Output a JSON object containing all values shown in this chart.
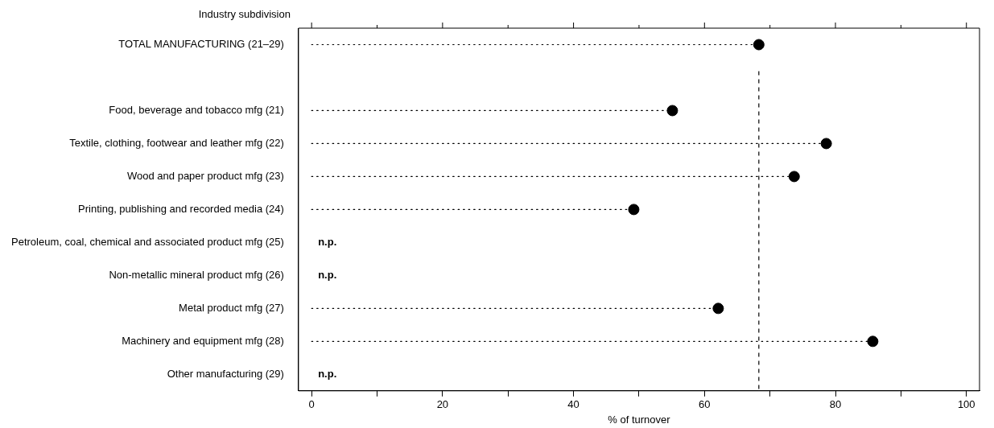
{
  "chart_data": {
    "type": "lollipop",
    "orientation": "horizontal",
    "xlabel": "% of turnover",
    "ylabel": "Industry subdivision",
    "categories": [
      "TOTAL MANUFACTURING (21–29)",
      null,
      "Food, beverage and tobacco mfg (21)",
      "Textile, clothing, footwear and leather mfg (22)",
      "Wood and paper product mfg (23)",
      "Printing, publishing and recorded media (24)",
      "Petroleum, coal, chemical and associated product mfg (25)",
      "Non-metallic mineral product mfg (26)",
      "Metal product mfg (27)",
      "Machinery and equipment mfg (28)",
      "Other manufacturing (29)"
    ],
    "values": [
      68.3,
      null,
      55.1,
      78.6,
      73.7,
      49.2,
      null,
      null,
      62.1,
      85.7,
      null
    ],
    "color": "#000000",
    "marker": "circle",
    "line_style": "dotted",
    "xlim": [
      -2,
      102
    ],
    "xticks": [
      0,
      {
        "value": 10,
        "label": null
      },
      20,
      {
        "value": 30,
        "label": null
      },
      40,
      {
        "value": 50,
        "label": null
      },
      60,
      {
        "value": 70,
        "label": null
      },
      80,
      {
        "value": 90,
        "label": null
      },
      100
    ],
    "ref_lines": [
      {
        "axis": "x",
        "value": 68.3,
        "line_style": "dashed",
        "color": "#000000"
      }
    ],
    "value_labels": [
      null,
      null,
      null,
      null,
      null,
      null,
      "n.p.",
      "n.p.",
      null,
      null,
      "n.p."
    ],
    "grid": false,
    "legend": false
  }
}
